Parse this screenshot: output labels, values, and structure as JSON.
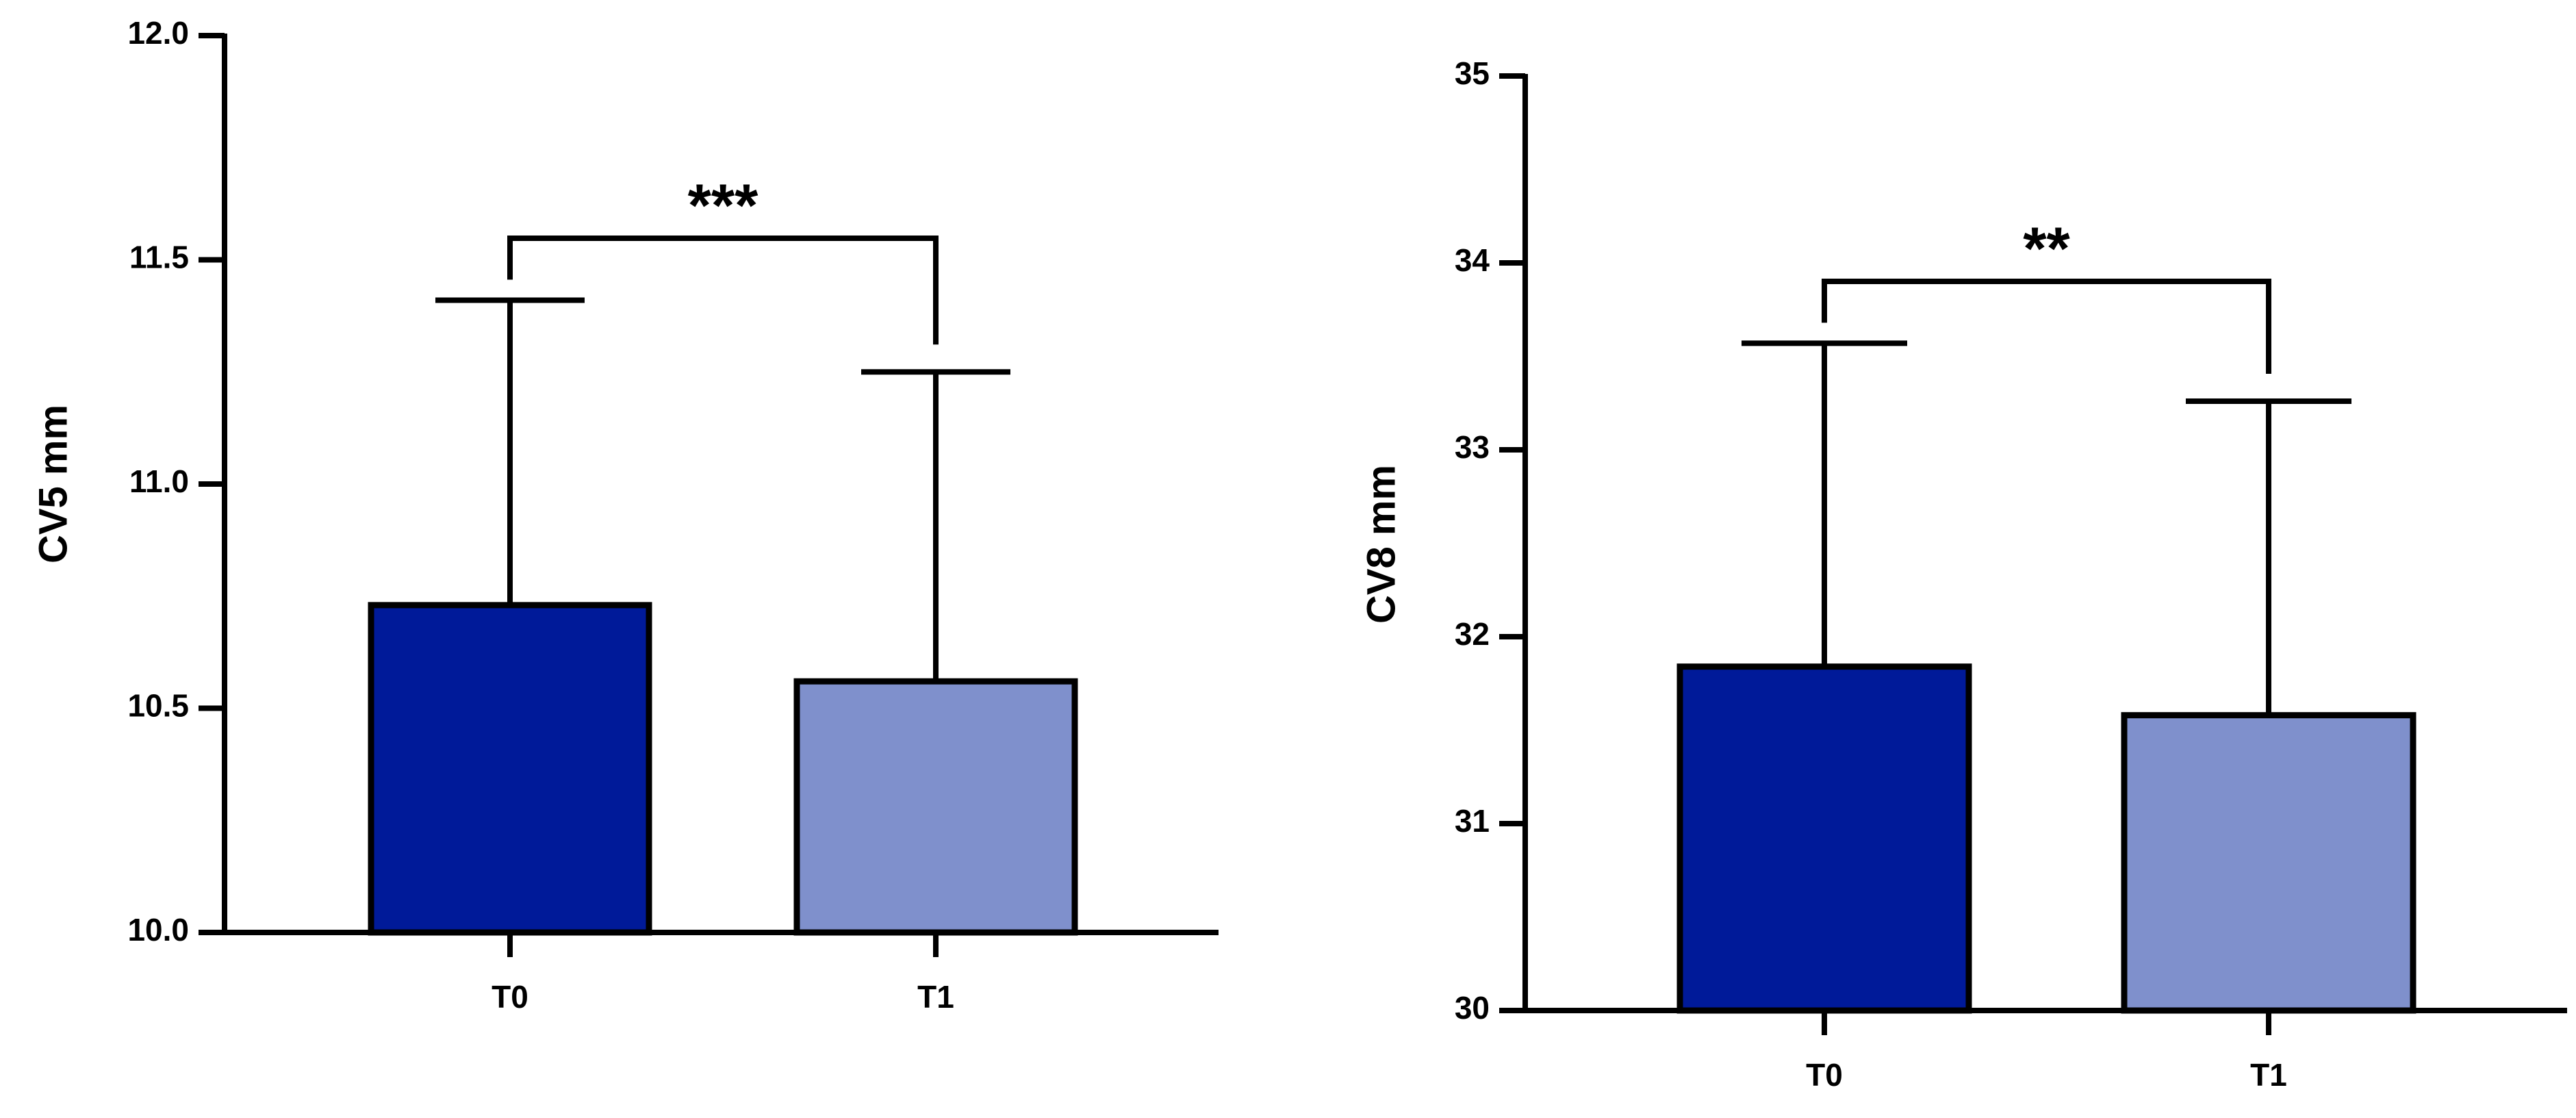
{
  "chart_data": [
    {
      "type": "bar",
      "title": "",
      "xlabel": "",
      "ylabel": "CV5 mm",
      "ylim": [
        10.0,
        12.0
      ],
      "yticks": [
        "10.0",
        "10.5",
        "11.0",
        "11.5",
        "12.0"
      ],
      "categories": [
        "T0",
        "T1"
      ],
      "values": [
        10.73,
        10.56
      ],
      "error_upper": [
        11.41,
        11.25
      ],
      "colors": [
        "#001A99",
        "#7F90CC"
      ],
      "significance": {
        "from": "T0",
        "to": "T1",
        "label": "***"
      },
      "grid": false,
      "legend": "none"
    },
    {
      "type": "bar",
      "title": "",
      "xlabel": "",
      "ylabel": "CV8 mm",
      "ylim": [
        30,
        35
      ],
      "yticks": [
        "30",
        "31",
        "32",
        "33",
        "34",
        "35"
      ],
      "categories": [
        "T0",
        "T1"
      ],
      "values": [
        31.84,
        31.58
      ],
      "error_upper": [
        33.57,
        33.26
      ],
      "colors": [
        "#001A99",
        "#7F90CC"
      ],
      "significance": {
        "from": "T0",
        "to": "T1",
        "label": "**"
      },
      "grid": false,
      "legend": "none"
    }
  ]
}
